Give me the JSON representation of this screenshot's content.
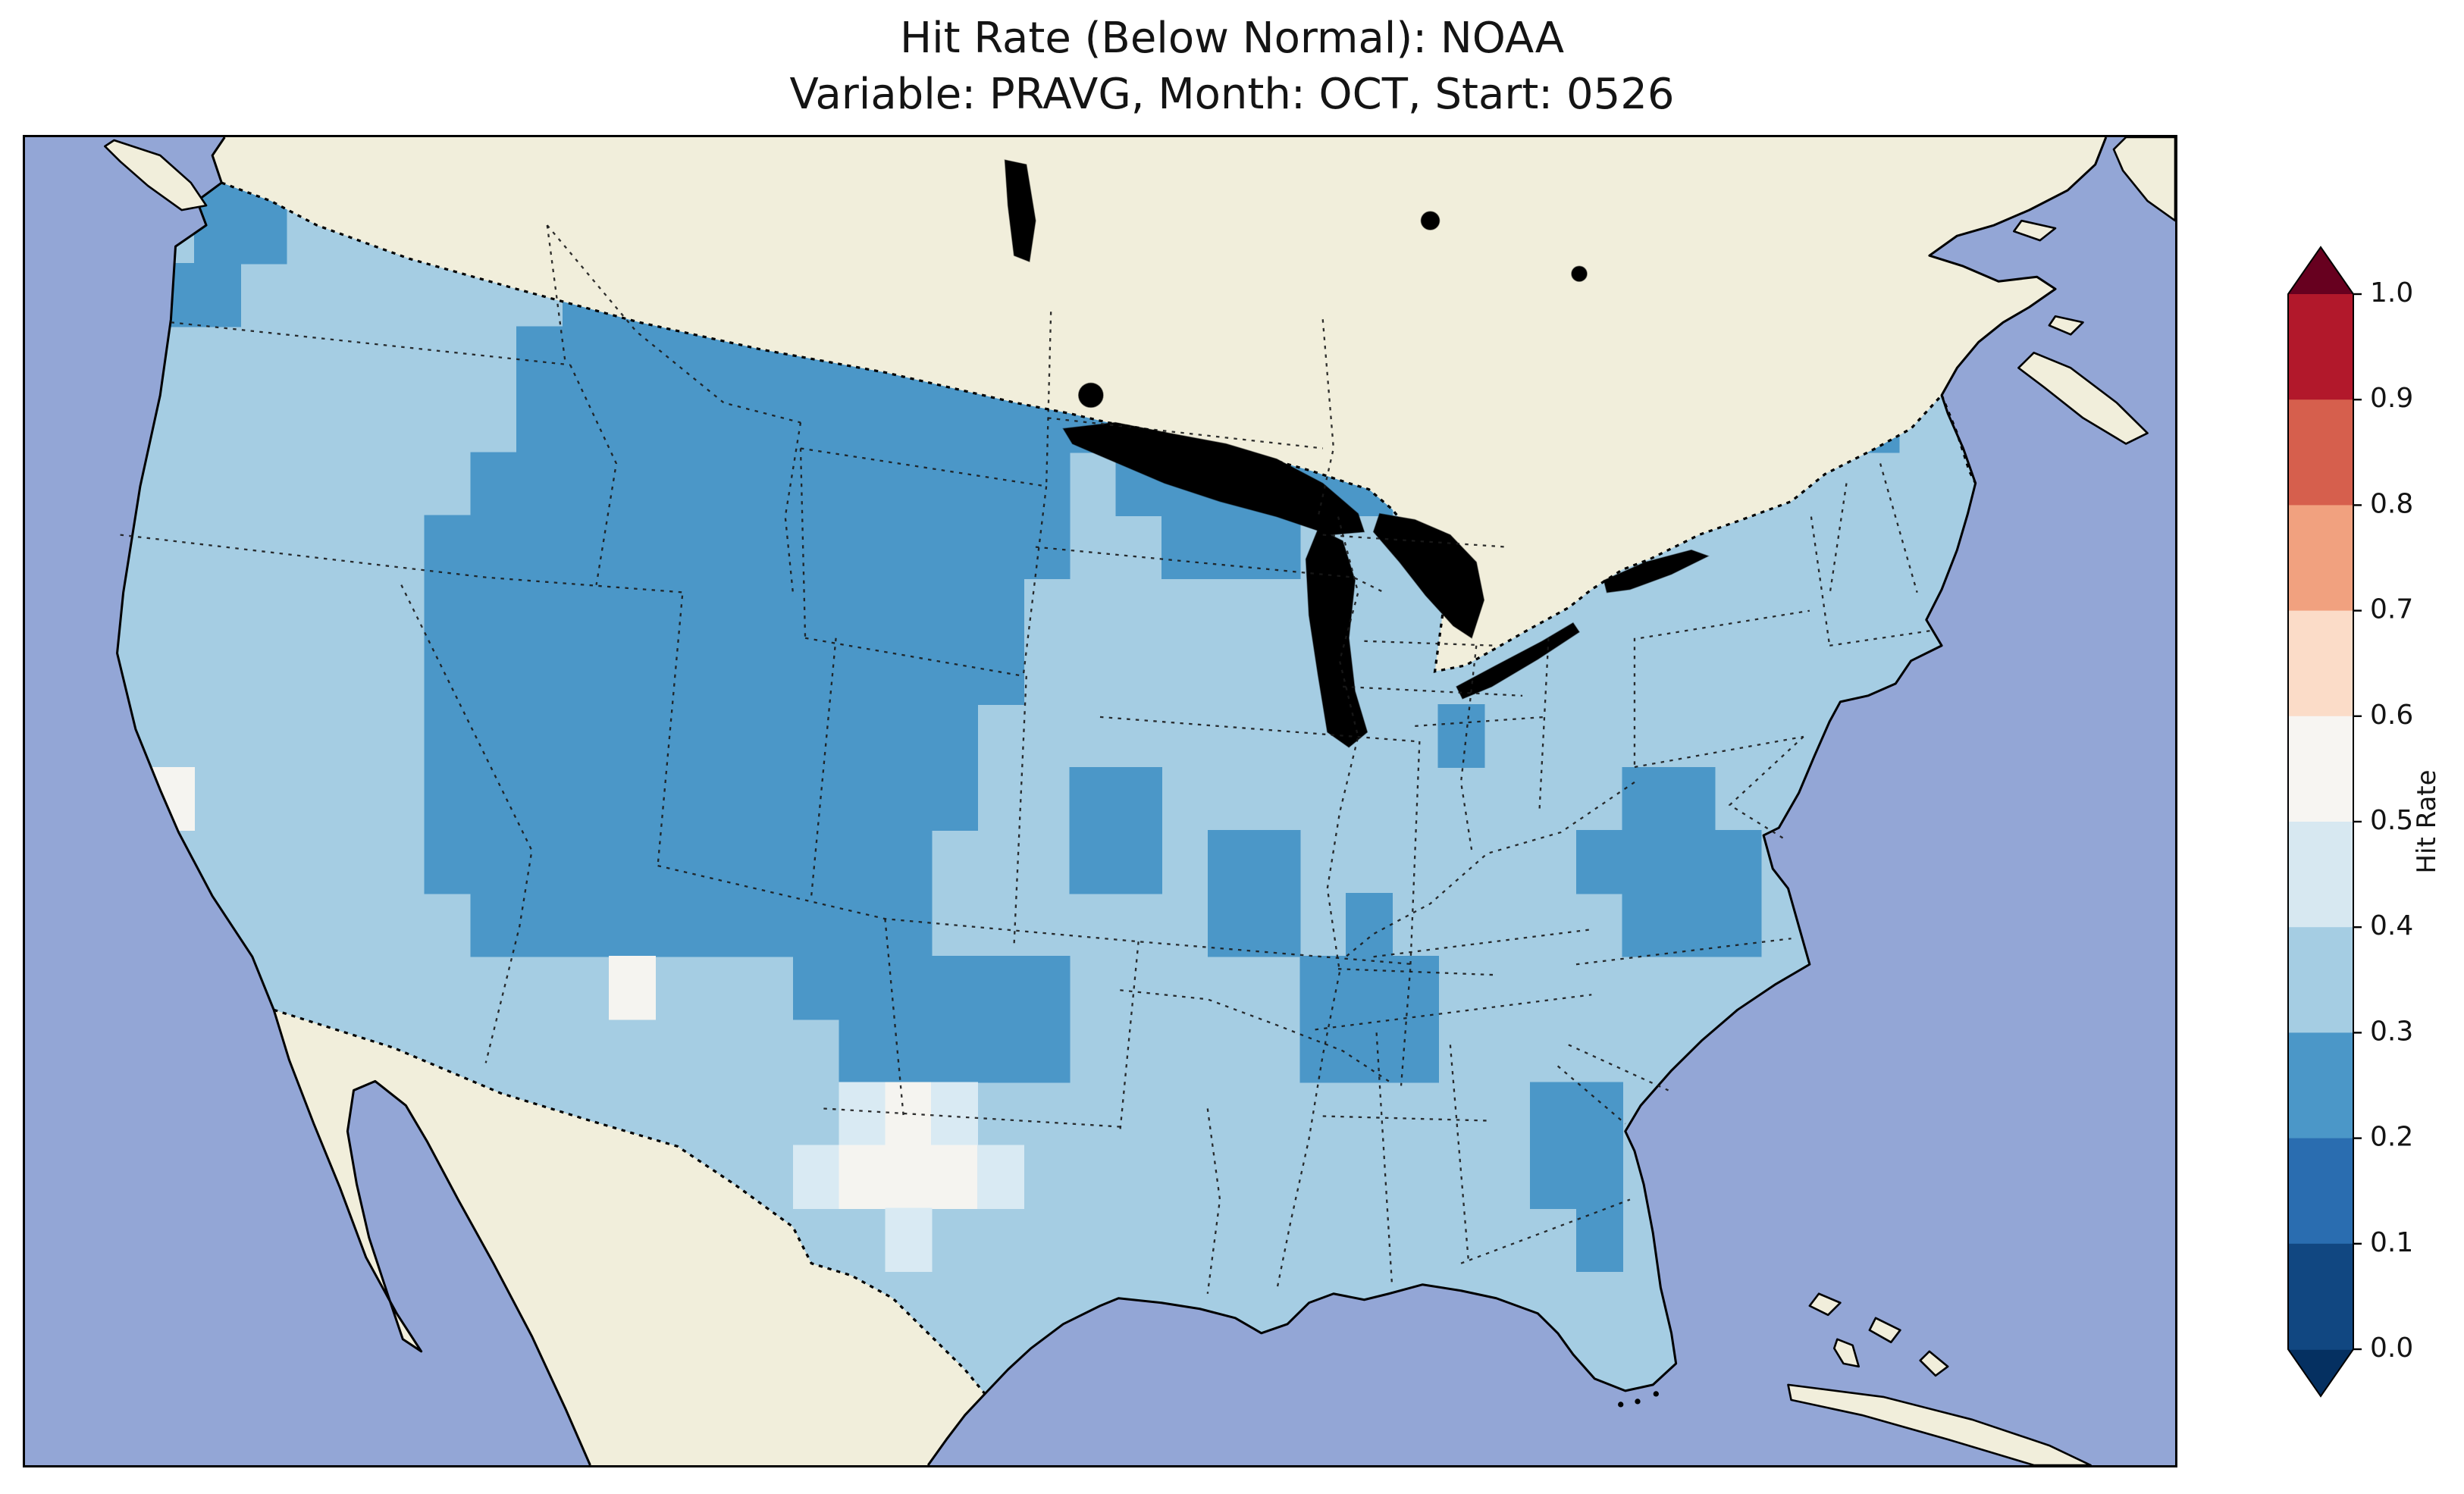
{
  "title": {
    "line1": "Hit Rate (Below Normal): NOAA",
    "line2": "Variable: PRAVG, Month: OCT, Start: 0526"
  },
  "colorbar": {
    "label": "Hit Rate",
    "ticks_top_to_bottom": [
      "1.0",
      "0.9",
      "0.8",
      "0.7",
      "0.6",
      "0.5",
      "0.4",
      "0.3",
      "0.2",
      "0.1",
      "0.0"
    ],
    "segments_top_to_bottom": [
      "#b2182b",
      "#d65f4d",
      "#f1a17f",
      "#fbdcc8",
      "#f7f5f2",
      "#d7e8f1",
      "#a5cde3",
      "#4b97c8",
      "#2a6db0",
      "#114781"
    ],
    "over_color": "#67001f",
    "under_color": "#053061"
  },
  "chart_data": {
    "type": "heatmap",
    "title": "Hit Rate (Below Normal): NOAA",
    "subtitle": "Variable: PRAVG, Month: OCT, Start: 0526",
    "metric": "Hit Rate (Below Normal)",
    "source": "NOAA",
    "variable": "PRAVG",
    "month": "OCT",
    "start": "0526",
    "colorbar_label": "Hit Rate",
    "value_range": [
      0.0,
      1.0
    ],
    "legend_position": "right",
    "notes": "Choropleth over CONUS. Most of the country sits in the 0.3-0.4 bin (light blue). A large 0.2-0.3 (medium blue) region covers the Great Basin, central Rockies, Montana/Wyoming and the northern plains into Minnesota; smaller 0.2-0.3 patches over NE Washington, New Mexico/Texas panhandle, the mid-South, Alabama/Georgia, coastal Virginia/North Carolina, central Florida and northern New England. A few 0.4-0.6 (pale/white) cells appear along the Rio Grande in west Texas and the California coast.",
    "grid_legend": {
      ".": "outside US / no override",
      "2": "0.2-0.3",
      "3": "0.3-0.4 (base fill)",
      "4": "0.4-0.5",
      "5": "0.5-0.6"
    },
    "grid_rows": [
      "..22....................................",
      "..22.........2222.......................",
      ".22.......22222222222...................",
      ".........2222222222222222..........2.22.",
      ".........22222222222222222.........2222.",
      "........2222222222222.222222............",
      ".......22222222222222..222..............",
      ".......2222222222222....................",
      ".......2222222222222....................",
      ".......222222222222..........2..........",
      ".5.....222222222222..22..........22.....",
      ".......22222222222...22.22......2222....",
      "........2222222222......22.2.....222....",
      "...........5...222222.....222...........",
      "................22222.....222...........",
      "................454............22.......",
      "...............45554...........22.......",
      ".................4..............2.......",
      "........................................",
      "........................................"
    ],
    "palette": {
      "2": "#4b97c8",
      "3": "#a5cde3",
      "4": "#d9eaf3",
      "5": "#f5f4f0"
    },
    "map_colors": {
      "ocean": "#93a6d6",
      "land": "#f1eedb",
      "lakes": "#aeb9e2",
      "base_us": "#a5cde3"
    }
  }
}
